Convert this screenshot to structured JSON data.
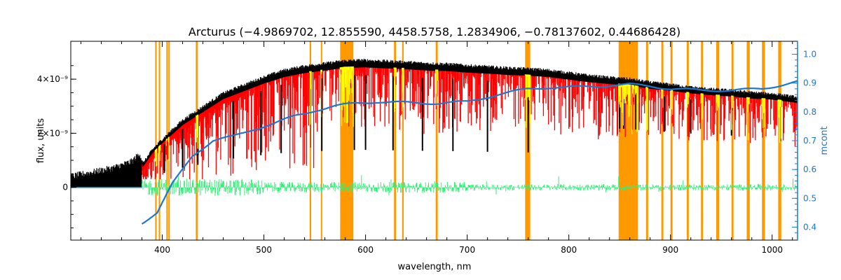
{
  "chart_data": {
    "type": "line",
    "title": "Arcturus   (−4.9869702, 12.855590, 4458.5758, 1.2834906, −0.78137602, 0.44686428)",
    "xlabel": "wavelength, nm",
    "ylabel": "flux, units",
    "ylabel_right": "mcont",
    "xlim": [
      310,
      1025
    ],
    "ylim": [
      -1.95e-09,
      5.4e-09
    ],
    "ylim_right": [
      0.355,
      1.045
    ],
    "x_ticks": [
      400,
      500,
      600,
      700,
      800,
      900,
      1000
    ],
    "y_ticks": [
      {
        "value": 4e-09,
        "label": "4×10⁻⁹"
      },
      {
        "value": 2e-09,
        "label": "2×10⁻⁹"
      },
      {
        "value": 0,
        "label": "0"
      }
    ],
    "y_ticks_right": [
      0.4,
      0.5,
      0.6,
      0.7,
      0.8,
      0.9,
      1.0
    ],
    "colors": {
      "observed": "#000000",
      "model": "#ff0000",
      "residual": "#33ee77",
      "mcont": "#1a78d2",
      "masked_model": "#ffff00",
      "mask_band": "#ff9900"
    },
    "series": [
      {
        "key": "observed",
        "x": [
          310,
          330,
          350,
          370,
          378,
          381,
          390,
          400,
          420,
          440,
          460,
          480,
          500,
          520,
          540,
          560,
          580,
          600,
          620,
          640,
          660,
          680,
          700,
          720,
          740,
          760,
          780,
          800,
          820,
          840,
          860,
          880,
          900,
          920,
          940,
          960,
          980,
          1000,
          1025
        ],
        "y": [
          4e-10,
          5.5e-10,
          7e-10,
          9.5e-10,
          1.25e-09,
          8e-10,
          1.3e-09,
          1.7e-09,
          2.4e-09,
          2.9e-09,
          3.4e-09,
          3.7e-09,
          4e-09,
          4.25e-09,
          4.4e-09,
          4.5e-09,
          4.6e-09,
          4.62e-09,
          4.58e-09,
          4.55e-09,
          4.5e-09,
          4.48e-09,
          4.42e-09,
          4.38e-09,
          4.33e-09,
          4.3e-09,
          4.25e-09,
          4.15e-09,
          4.05e-09,
          3.98e-09,
          3.92e-09,
          3.8e-09,
          3.72e-09,
          3.62e-09,
          3.55e-09,
          3.5e-09,
          3.42e-09,
          3.38e-09,
          3.25e-09
        ]
      },
      {
        "key": "mcont",
        "x": [
          380,
          395,
          410,
          430,
          450,
          470,
          490,
          510,
          530,
          550,
          570,
          590,
          610,
          640,
          670,
          700,
          730,
          760,
          780,
          800,
          830,
          860,
          880,
          900,
          930,
          960,
          990,
          1025
        ],
        "y": [
          0.415,
          0.45,
          0.55,
          0.65,
          0.7,
          0.715,
          0.74,
          0.76,
          0.785,
          0.805,
          0.82,
          0.83,
          0.835,
          0.832,
          0.83,
          0.835,
          0.86,
          0.88,
          0.885,
          0.885,
          0.89,
          0.895,
          0.89,
          0.88,
          0.875,
          0.875,
          0.88,
          0.905
        ]
      }
    ],
    "mask_bands": [
      [
        393,
        394.5
      ],
      [
        396.5,
        398
      ],
      [
        404,
        405
      ],
      [
        406,
        407
      ],
      [
        433,
        435
      ],
      [
        545,
        546.5
      ],
      [
        556,
        557
      ],
      [
        575,
        588
      ],
      [
        628,
        630
      ],
      [
        636,
        637.5
      ],
      [
        669,
        671
      ],
      [
        757,
        762
      ],
      [
        849,
        868
      ],
      [
        876,
        878
      ],
      [
        891,
        893
      ],
      [
        900,
        902
      ],
      [
        916,
        918
      ],
      [
        930,
        932
      ],
      [
        945,
        948
      ],
      [
        960,
        962
      ],
      [
        975,
        978
      ],
      [
        990,
        993
      ],
      [
        1006,
        1009
      ]
    ],
    "grid": false,
    "legend": "none"
  }
}
